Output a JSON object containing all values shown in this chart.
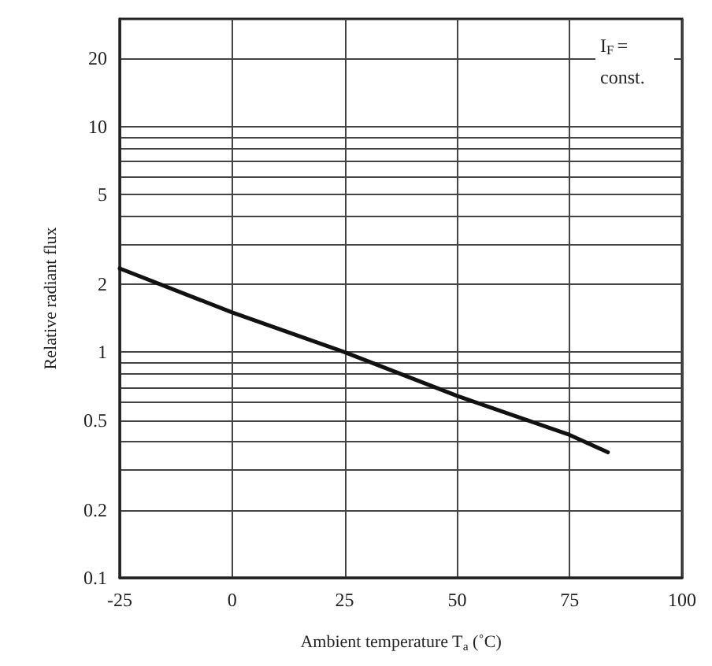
{
  "chart_data": {
    "type": "line",
    "xlabel": "Ambient temperature T$_{a}$ (˚C)",
    "ylabel": "Relative radiant flux",
    "annotations": [
      "I$_{F}$ = const."
    ],
    "x": [
      -25,
      0,
      25,
      50,
      75,
      83.5
    ],
    "series": [
      {
        "color": "#111111",
        "values": [
          2.35,
          1.5,
          1.0,
          0.64,
          0.43,
          0.36
        ]
      }
    ],
    "xlim": [
      -25,
      100
    ],
    "xticks": [
      -25,
      0,
      25,
      50,
      75,
      100
    ],
    "ylim": [
      0.1,
      30
    ],
    "yticks": [
      0.1,
      0.2,
      {
        "value": 0.3,
        "label": null
      },
      {
        "value": 0.4,
        "label": null
      },
      0.5,
      {
        "value": 0.6,
        "label": null
      },
      {
        "value": 0.7,
        "label": null
      },
      {
        "value": 0.8,
        "label": null
      },
      {
        "value": 0.9,
        "label": null
      },
      1,
      2,
      {
        "value": 3,
        "label": null
      },
      {
        "value": 4,
        "label": null
      },
      5,
      {
        "value": 6,
        "label": null
      },
      {
        "value": 7,
        "label": null
      },
      {
        "value": 8,
        "label": null
      },
      {
        "value": 9,
        "label": null
      },
      10,
      20
    ],
    "log": true,
    "grid": true,
    "marker": "none",
    "line_style": "solid"
  }
}
